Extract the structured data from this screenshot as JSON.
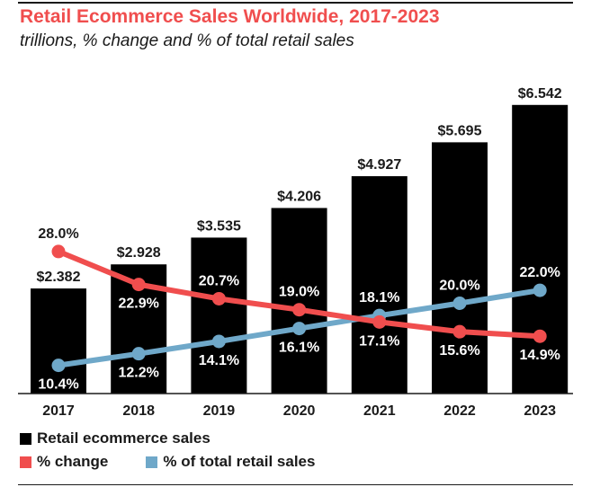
{
  "header": {
    "title": "Retail Ecommerce Sales Worldwide, 2017-2023",
    "subtitle": "trillions, % change and % of total retail sales"
  },
  "colors": {
    "bar": "#000000",
    "change": "#f04e4e",
    "share": "#6fa8c9",
    "title": "#f04e4e"
  },
  "legend": {
    "sales": "Retail ecommerce sales",
    "change": "% change",
    "share": "% of total retail sales"
  },
  "chart_data": {
    "type": "bar",
    "categories": [
      "2017",
      "2018",
      "2019",
      "2020",
      "2021",
      "2022",
      "2023"
    ],
    "ylim": [
      0,
      7
    ],
    "pct_lim": [
      0,
      40
    ],
    "series": [
      {
        "name": "Retail ecommerce sales",
        "kind": "bar",
        "values": [
          2.382,
          2.928,
          3.535,
          4.206,
          4.927,
          5.695,
          6.542
        ],
        "labels": [
          "$2.382",
          "$2.928",
          "$3.535",
          "$4.206",
          "$4.927",
          "$5.695",
          "$6.542"
        ]
      },
      {
        "name": "% change",
        "kind": "line",
        "values": [
          28.0,
          22.9,
          20.7,
          19.0,
          17.1,
          15.6,
          14.9
        ],
        "labels": [
          "28.0%",
          "22.9%",
          "20.7%",
          "19.0%",
          "17.1%",
          "15.6%",
          "14.9%"
        ],
        "label_pos": [
          "above",
          "below",
          "above",
          "above",
          "below",
          "below",
          "below"
        ]
      },
      {
        "name": "% of total retail sales",
        "kind": "line",
        "values": [
          10.4,
          12.2,
          14.1,
          16.1,
          18.1,
          20.0,
          22.0
        ],
        "labels": [
          "10.4%",
          "12.2%",
          "14.1%",
          "16.1%",
          "18.1%",
          "20.0%",
          "22.0%"
        ],
        "label_pos": [
          "below",
          "below",
          "below",
          "below",
          "above",
          "above",
          "above"
        ]
      }
    ],
    "grid": false,
    "legend_position": "bottom-left"
  }
}
